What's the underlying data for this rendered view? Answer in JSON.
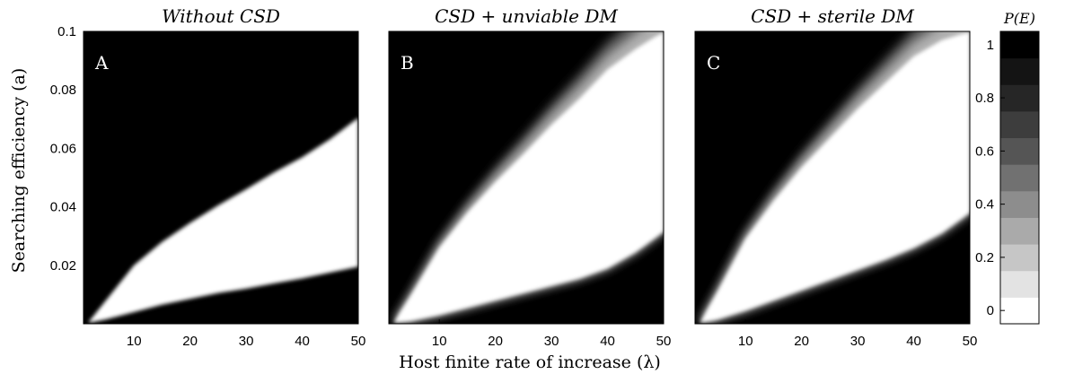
{
  "figure": {
    "xlabel": "Host finite rate of increase (λ)",
    "ylabel": "Searching efficiency (a)"
  },
  "colorbar": {
    "title": "P(E)",
    "ticks": [
      "0",
      "0.2",
      "0.4",
      "0.6",
      "0.8",
      "1"
    ],
    "levels": [
      "#ffffff",
      "#e3e3e3",
      "#c6c6c6",
      "#aaaaaa",
      "#8d8d8d",
      "#717171",
      "#555555",
      "#3d3d3d",
      "#262626",
      "#141414",
      "#000000"
    ]
  },
  "chart_data": [
    {
      "type": "heatmap",
      "title": "Without CSD",
      "panel_label": "A",
      "xlim": [
        1,
        50
      ],
      "ylim": [
        0,
        0.1
      ],
      "xticks": [
        "10",
        "20",
        "30",
        "40",
        "50"
      ],
      "yticks": [
        "0.02",
        "0.04",
        "0.06",
        "0.08",
        "0.1"
      ],
      "white_region": {
        "x": [
          2,
          5,
          10,
          15,
          20,
          25,
          30,
          35,
          40,
          45,
          50
        ],
        "lower": [
          0.0003,
          0.0015,
          0.004,
          0.0065,
          0.0085,
          0.0105,
          0.012,
          0.0138,
          0.0155,
          0.0175,
          0.0195
        ],
        "upper": [
          0.0008,
          0.008,
          0.02,
          0.028,
          0.0345,
          0.0405,
          0.046,
          0.0518,
          0.057,
          0.0632,
          0.0705
        ]
      }
    },
    {
      "type": "heatmap",
      "title": "CSD + unviable DM",
      "panel_label": "B",
      "xlim": [
        1,
        50
      ],
      "ylim": [
        0,
        0.1
      ],
      "xticks": [
        "10",
        "20",
        "30",
        "40",
        "50"
      ],
      "white_region": {
        "x": [
          2,
          5,
          10,
          15,
          20,
          25,
          30,
          35,
          40,
          45,
          50
        ],
        "lower": [
          0.0003,
          0.001,
          0.003,
          0.0055,
          0.008,
          0.0105,
          0.013,
          0.0155,
          0.019,
          0.0245,
          0.0315
        ],
        "upper": [
          0.0008,
          0.01,
          0.026,
          0.038,
          0.0485,
          0.058,
          0.068,
          0.077,
          0.087,
          0.094,
          0.1
        ]
      }
    },
    {
      "type": "heatmap",
      "title": "CSD + sterile DM",
      "panel_label": "C",
      "xlim": [
        1,
        50
      ],
      "ylim": [
        0,
        0.1
      ],
      "xticks": [
        "10",
        "20",
        "30",
        "40",
        "50"
      ],
      "white_region": {
        "x": [
          2,
          5,
          10,
          15,
          20,
          25,
          30,
          35,
          40,
          45,
          50
        ],
        "lower": [
          0.0003,
          0.0015,
          0.0045,
          0.008,
          0.0115,
          0.015,
          0.0185,
          0.022,
          0.026,
          0.031,
          0.038
        ],
        "upper": [
          0.0008,
          0.011,
          0.029,
          0.042,
          0.0535,
          0.0635,
          0.0735,
          0.0825,
          0.0915,
          0.097,
          0.1
        ]
      }
    }
  ]
}
